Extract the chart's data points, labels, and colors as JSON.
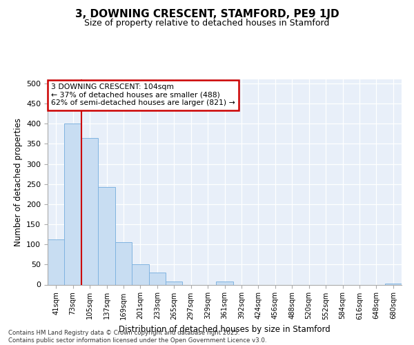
{
  "title": "3, DOWNING CRESCENT, STAMFORD, PE9 1JD",
  "subtitle": "Size of property relative to detached houses in Stamford",
  "xlabel": "Distribution of detached houses by size in Stamford",
  "ylabel": "Number of detached properties",
  "categories": [
    "41sqm",
    "73sqm",
    "105sqm",
    "137sqm",
    "169sqm",
    "201sqm",
    "233sqm",
    "265sqm",
    "297sqm",
    "329sqm",
    "361sqm",
    "392sqm",
    "424sqm",
    "456sqm",
    "488sqm",
    "520sqm",
    "552sqm",
    "584sqm",
    "616sqm",
    "648sqm",
    "680sqm"
  ],
  "values": [
    112,
    400,
    365,
    243,
    105,
    50,
    30,
    8,
    0,
    0,
    7,
    0,
    0,
    0,
    0,
    0,
    0,
    0,
    0,
    0,
    3
  ],
  "bar_color": "#c8ddf2",
  "bar_edge_color": "#7fb3e0",
  "property_line_x": 2.0,
  "annotation_text": "3 DOWNING CRESCENT: 104sqm\n← 37% of detached houses are smaller (488)\n62% of semi-detached houses are larger (821) →",
  "annotation_box_color": "#ffffff",
  "annotation_box_edge_color": "#cc0000",
  "line_color": "#cc0000",
  "background_color": "#e8eff9",
  "grid_color": "#ffffff",
  "footer_text": "Contains HM Land Registry data © Crown copyright and database right 2025.\nContains public sector information licensed under the Open Government Licence v3.0.",
  "ylim": [
    0,
    510
  ],
  "yticks": [
    0,
    50,
    100,
    150,
    200,
    250,
    300,
    350,
    400,
    450,
    500
  ]
}
